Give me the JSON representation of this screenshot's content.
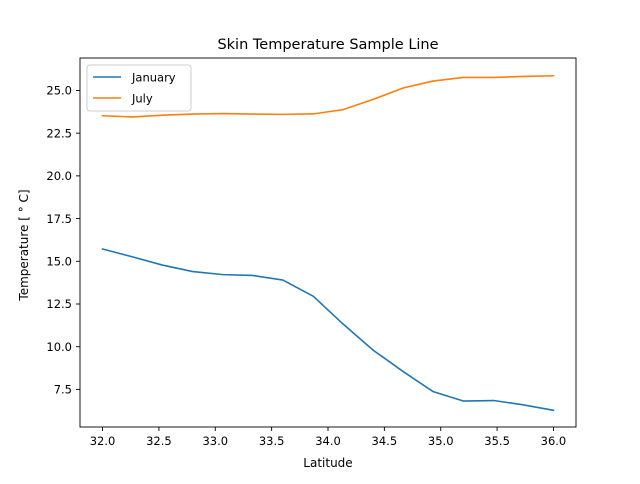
{
  "chart_data": {
    "type": "line",
    "title": "Skin Temperature Sample Line",
    "xlabel": "Latitude",
    "ylabel": "Temperature [$^\\circ$C]",
    "ylabel_display": "Temperature [ ° C]",
    "xlim": [
      31.8,
      36.2
    ],
    "ylim": [
      5.3,
      26.9
    ],
    "xticks": [
      32.0,
      32.5,
      33.0,
      33.5,
      34.0,
      34.5,
      35.0,
      35.5,
      36.0
    ],
    "xtick_labels": [
      "32.0",
      "32.5",
      "33.0",
      "33.5",
      "34.0",
      "34.5",
      "35.0",
      "35.5",
      "36.0"
    ],
    "yticks": [
      7.5,
      10.0,
      12.5,
      15.0,
      17.5,
      20.0,
      22.5,
      25.0
    ],
    "ytick_labels": [
      "7.5",
      "10.0",
      "12.5",
      "15.0",
      "17.5",
      "20.0",
      "22.5",
      "25.0"
    ],
    "grid": false,
    "legend_position": "upper-left",
    "x": [
      32.0,
      32.27,
      32.53,
      32.8,
      33.07,
      33.33,
      33.6,
      33.87,
      34.13,
      34.4,
      34.67,
      34.93,
      35.2,
      35.47,
      35.73,
      36.0
    ],
    "series": [
      {
        "name": "January",
        "color": "#1f77b4",
        "values": [
          15.72,
          15.25,
          14.78,
          14.4,
          14.22,
          14.17,
          13.9,
          12.95,
          11.35,
          9.8,
          8.53,
          7.38,
          6.82,
          6.85,
          6.6,
          6.28
        ]
      },
      {
        "name": "July",
        "color": "#ff7f0e",
        "values": [
          23.52,
          23.45,
          23.55,
          23.62,
          23.65,
          23.62,
          23.6,
          23.63,
          23.87,
          24.48,
          25.15,
          25.55,
          25.76,
          25.76,
          25.82,
          25.86
        ]
      }
    ]
  }
}
